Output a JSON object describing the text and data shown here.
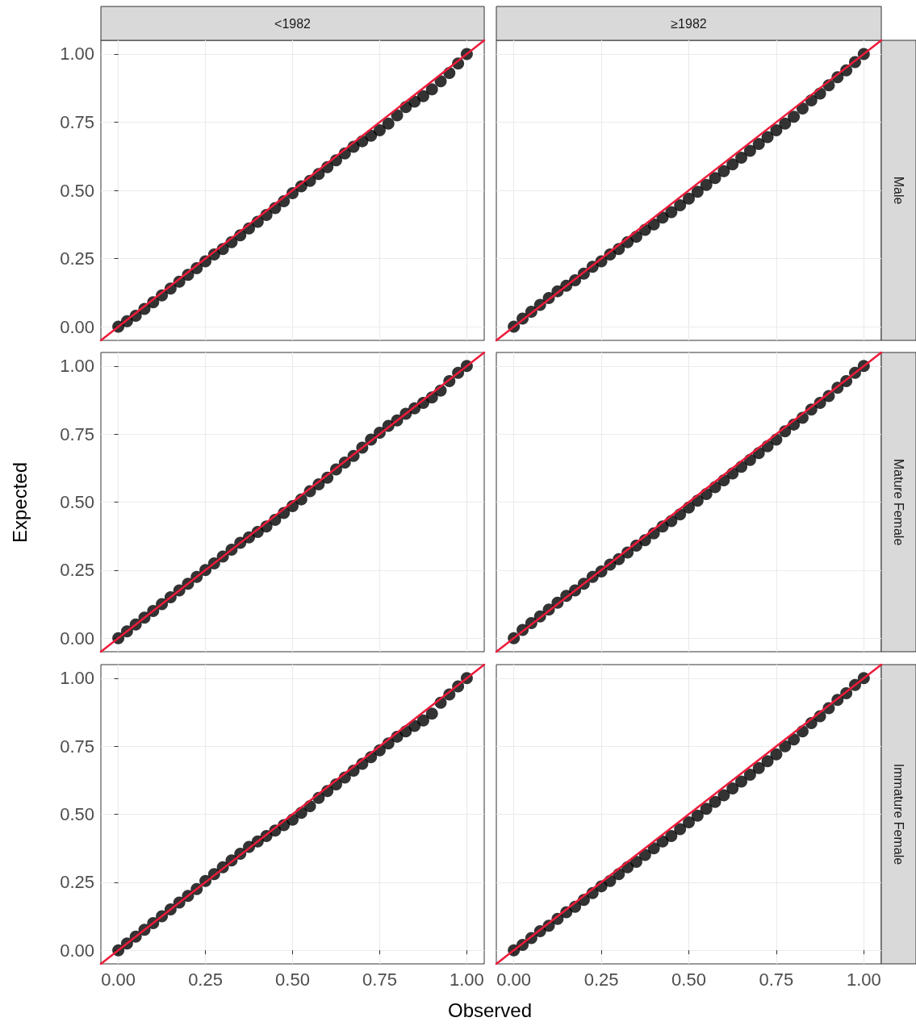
{
  "chart_data": [
    {
      "type": "scatter",
      "title": "<1982",
      "xlim": [
        -0.05,
        1.05
      ],
      "ylim": [
        -0.05,
        1.05
      ],
      "xticks": [
        0,
        0.25,
        0.5,
        0.75,
        1
      ],
      "yticks": [
        {
          "value": 0,
          "label": "0.00"
        },
        {
          "value": 0.25,
          "label": "0.25"
        },
        {
          "value": 0.5,
          "label": "0.50"
        },
        {
          "value": 0.75,
          "label": "0.75"
        },
        {
          "value": 1,
          "label": "1.00"
        }
      ],
      "tick_labels": "y",
      "grid": true,
      "x": [
        0,
        0.025,
        0.05,
        0.075,
        0.1,
        0.125,
        0.15,
        0.175,
        0.2,
        0.225,
        0.25,
        0.275,
        0.3,
        0.325,
        0.35,
        0.375,
        0.4,
        0.425,
        0.45,
        0.475,
        0.5,
        0.525,
        0.55,
        0.575,
        0.6,
        0.625,
        0.65,
        0.675,
        0.7,
        0.725,
        0.75,
        0.775,
        0.8,
        0.825,
        0.85,
        0.875,
        0.9,
        0.925,
        0.95,
        0.975,
        1
      ],
      "series": [
        {
          "type": "line",
          "color": "#ee1b3a",
          "x": [
            -0.05,
            0.5,
            1.05
          ],
          "values": [
            -0.05,
            0.5,
            1.05
          ]
        },
        {
          "type": "scatter",
          "marker": "circle",
          "color": "#000000",
          "values": [
            0,
            0.02,
            0.04,
            0.065,
            0.09,
            0.115,
            0.14,
            0.165,
            0.19,
            0.215,
            0.24,
            0.265,
            0.285,
            0.31,
            0.335,
            0.36,
            0.385,
            0.41,
            0.435,
            0.46,
            0.49,
            0.515,
            0.535,
            0.56,
            0.585,
            0.61,
            0.635,
            0.66,
            0.68,
            0.7,
            0.72,
            0.745,
            0.775,
            0.805,
            0.825,
            0.845,
            0.87,
            0.9,
            0.93,
            0.965,
            1
          ]
        }
      ]
    },
    {
      "type": "scatter",
      "title": "≥1982",
      "annotations": [
        "Male"
      ],
      "xlim": [
        -0.05,
        1.05
      ],
      "ylim": [
        -0.05,
        1.05
      ],
      "xticks": [
        0,
        0.25,
        0.5,
        0.75,
        1
      ],
      "yticks": [
        0,
        0.25,
        0.5,
        0.75,
        1
      ],
      "tick_labels": false,
      "grid": true,
      "x": [
        0,
        0.025,
        0.05,
        0.075,
        0.1,
        0.125,
        0.15,
        0.175,
        0.2,
        0.225,
        0.25,
        0.275,
        0.3,
        0.325,
        0.35,
        0.375,
        0.4,
        0.425,
        0.45,
        0.475,
        0.5,
        0.525,
        0.55,
        0.575,
        0.6,
        0.625,
        0.65,
        0.675,
        0.7,
        0.725,
        0.75,
        0.775,
        0.8,
        0.825,
        0.85,
        0.875,
        0.9,
        0.925,
        0.95,
        0.975,
        1
      ],
      "series": [
        {
          "type": "line",
          "color": "#ee1b3a",
          "x": [
            -0.05,
            1.05
          ],
          "values": [
            -0.05,
            1.05
          ]
        },
        {
          "type": "scatter",
          "marker": "circle",
          "color": "#000000",
          "values": [
            0,
            0.03,
            0.055,
            0.08,
            0.105,
            0.13,
            0.15,
            0.17,
            0.195,
            0.22,
            0.24,
            0.265,
            0.285,
            0.31,
            0.33,
            0.355,
            0.375,
            0.4,
            0.42,
            0.445,
            0.47,
            0.495,
            0.52,
            0.545,
            0.57,
            0.595,
            0.62,
            0.645,
            0.67,
            0.695,
            0.72,
            0.745,
            0.77,
            0.8,
            0.83,
            0.855,
            0.885,
            0.915,
            0.94,
            0.97,
            1
          ]
        }
      ]
    },
    {
      "type": "scatter",
      "ylabel": "Expected",
      "xlim": [
        -0.05,
        1.05
      ],
      "ylim": [
        -0.05,
        1.05
      ],
      "xticks": [
        0,
        0.25,
        0.5,
        0.75,
        1
      ],
      "yticks": [
        {
          "value": 0,
          "label": "0.00"
        },
        {
          "value": 0.25,
          "label": "0.25"
        },
        {
          "value": 0.5,
          "label": "0.50"
        },
        {
          "value": 0.75,
          "label": "0.75"
        },
        {
          "value": 1,
          "label": "1.00"
        }
      ],
      "tick_labels": "y",
      "grid": true,
      "x": [
        0,
        0.025,
        0.05,
        0.075,
        0.1,
        0.125,
        0.15,
        0.175,
        0.2,
        0.225,
        0.25,
        0.275,
        0.3,
        0.325,
        0.35,
        0.375,
        0.4,
        0.425,
        0.45,
        0.475,
        0.5,
        0.525,
        0.55,
        0.575,
        0.6,
        0.625,
        0.65,
        0.675,
        0.7,
        0.725,
        0.75,
        0.775,
        0.8,
        0.825,
        0.85,
        0.875,
        0.9,
        0.925,
        0.95,
        0.975,
        1
      ],
      "series": [
        {
          "type": "line",
          "color": "#ee1b3a",
          "x": [
            -0.05,
            1.05
          ],
          "values": [
            -0.05,
            1.05
          ]
        },
        {
          "type": "scatter",
          "marker": "circle",
          "color": "#000000",
          "values": [
            0,
            0.025,
            0.05,
            0.075,
            0.1,
            0.125,
            0.15,
            0.175,
            0.2,
            0.225,
            0.25,
            0.275,
            0.3,
            0.325,
            0.35,
            0.37,
            0.39,
            0.41,
            0.435,
            0.46,
            0.485,
            0.51,
            0.54,
            0.565,
            0.59,
            0.62,
            0.645,
            0.67,
            0.7,
            0.73,
            0.755,
            0.78,
            0.8,
            0.825,
            0.845,
            0.865,
            0.885,
            0.91,
            0.945,
            0.975,
            1
          ]
        }
      ]
    },
    {
      "type": "scatter",
      "annotations": [
        "Mature Female"
      ],
      "xlim": [
        -0.05,
        1.05
      ],
      "ylim": [
        -0.05,
        1.05
      ],
      "xticks": [
        0,
        0.25,
        0.5,
        0.75,
        1
      ],
      "yticks": [
        0,
        0.25,
        0.5,
        0.75,
        1
      ],
      "tick_labels": false,
      "grid": true,
      "x": [
        0,
        0.025,
        0.05,
        0.075,
        0.1,
        0.125,
        0.15,
        0.175,
        0.2,
        0.225,
        0.25,
        0.275,
        0.3,
        0.325,
        0.35,
        0.375,
        0.4,
        0.425,
        0.45,
        0.475,
        0.5,
        0.525,
        0.55,
        0.575,
        0.6,
        0.625,
        0.65,
        0.675,
        0.7,
        0.725,
        0.75,
        0.775,
        0.8,
        0.825,
        0.85,
        0.875,
        0.9,
        0.925,
        0.95,
        0.975,
        1
      ],
      "series": [
        {
          "type": "line",
          "color": "#ee1b3a",
          "x": [
            -0.05,
            1.05
          ],
          "values": [
            -0.05,
            1.05
          ]
        },
        {
          "type": "scatter",
          "marker": "circle",
          "color": "#000000",
          "values": [
            0,
            0.03,
            0.055,
            0.08,
            0.105,
            0.13,
            0.155,
            0.175,
            0.2,
            0.225,
            0.245,
            0.27,
            0.29,
            0.315,
            0.34,
            0.36,
            0.385,
            0.41,
            0.43,
            0.455,
            0.48,
            0.505,
            0.53,
            0.555,
            0.58,
            0.605,
            0.63,
            0.655,
            0.68,
            0.705,
            0.73,
            0.76,
            0.785,
            0.81,
            0.84,
            0.865,
            0.89,
            0.92,
            0.945,
            0.975,
            1
          ]
        }
      ]
    },
    {
      "type": "scatter",
      "xlabel": "Observed",
      "xlim": [
        -0.05,
        1.05
      ],
      "ylim": [
        -0.05,
        1.05
      ],
      "xticks": [
        {
          "value": 0,
          "label": "0.00"
        },
        {
          "value": 0.25,
          "label": "0.25"
        },
        {
          "value": 0.5,
          "label": "0.50"
        },
        {
          "value": 0.75,
          "label": "0.75"
        },
        {
          "value": 1,
          "label": "1.00"
        }
      ],
      "yticks": [
        {
          "value": 0,
          "label": "0.00"
        },
        {
          "value": 0.25,
          "label": "0.25"
        },
        {
          "value": 0.5,
          "label": "0.50"
        },
        {
          "value": 0.75,
          "label": "0.75"
        },
        {
          "value": 1,
          "label": "1.00"
        }
      ],
      "grid": true,
      "x": [
        0,
        0.025,
        0.05,
        0.075,
        0.1,
        0.125,
        0.15,
        0.175,
        0.2,
        0.225,
        0.25,
        0.275,
        0.3,
        0.325,
        0.35,
        0.375,
        0.4,
        0.425,
        0.45,
        0.475,
        0.5,
        0.525,
        0.55,
        0.575,
        0.6,
        0.625,
        0.65,
        0.675,
        0.7,
        0.725,
        0.75,
        0.775,
        0.8,
        0.825,
        0.85,
        0.875,
        0.9,
        0.925,
        0.95,
        0.975,
        1
      ],
      "series": [
        {
          "type": "line",
          "color": "#ee1b3a",
          "x": [
            -0.05,
            1.05
          ],
          "values": [
            -0.05,
            1.05
          ]
        },
        {
          "type": "scatter",
          "marker": "circle",
          "color": "#000000",
          "values": [
            0,
            0.025,
            0.05,
            0.075,
            0.1,
            0.125,
            0.15,
            0.175,
            0.2,
            0.225,
            0.255,
            0.28,
            0.305,
            0.33,
            0.355,
            0.38,
            0.4,
            0.42,
            0.44,
            0.46,
            0.48,
            0.505,
            0.53,
            0.56,
            0.585,
            0.61,
            0.635,
            0.66,
            0.685,
            0.71,
            0.735,
            0.76,
            0.785,
            0.805,
            0.825,
            0.845,
            0.87,
            0.91,
            0.94,
            0.97,
            1
          ]
        }
      ]
    },
    {
      "type": "scatter",
      "annotations": [
        "Immature Female"
      ],
      "xlim": [
        -0.05,
        1.05
      ],
      "ylim": [
        -0.05,
        1.05
      ],
      "xticks": [
        {
          "value": 0,
          "label": "0.00"
        },
        {
          "value": 0.25,
          "label": "0.25"
        },
        {
          "value": 0.5,
          "label": "0.50"
        },
        {
          "value": 0.75,
          "label": "0.75"
        },
        {
          "value": 1,
          "label": "1.00"
        }
      ],
      "yticks": [
        0,
        0.25,
        0.5,
        0.75,
        1
      ],
      "tick_labels": "x",
      "grid": true,
      "x": [
        0,
        0.025,
        0.05,
        0.075,
        0.1,
        0.125,
        0.15,
        0.175,
        0.2,
        0.225,
        0.25,
        0.275,
        0.3,
        0.325,
        0.35,
        0.375,
        0.4,
        0.425,
        0.45,
        0.475,
        0.5,
        0.525,
        0.55,
        0.575,
        0.6,
        0.625,
        0.65,
        0.675,
        0.7,
        0.725,
        0.75,
        0.775,
        0.8,
        0.825,
        0.85,
        0.875,
        0.9,
        0.925,
        0.95,
        0.975,
        1
      ],
      "series": [
        {
          "type": "line",
          "color": "#ee1b3a",
          "x": [
            -0.05,
            1.05
          ],
          "values": [
            -0.05,
            1.05
          ]
        },
        {
          "type": "scatter",
          "marker": "circle",
          "color": "#000000",
          "values": [
            0,
            0.02,
            0.045,
            0.07,
            0.09,
            0.115,
            0.14,
            0.16,
            0.185,
            0.21,
            0.235,
            0.255,
            0.28,
            0.305,
            0.325,
            0.35,
            0.375,
            0.4,
            0.42,
            0.445,
            0.47,
            0.495,
            0.52,
            0.545,
            0.57,
            0.595,
            0.62,
            0.645,
            0.67,
            0.695,
            0.72,
            0.75,
            0.775,
            0.805,
            0.835,
            0.86,
            0.89,
            0.92,
            0.945,
            0.975,
            1
          ]
        }
      ]
    }
  ]
}
